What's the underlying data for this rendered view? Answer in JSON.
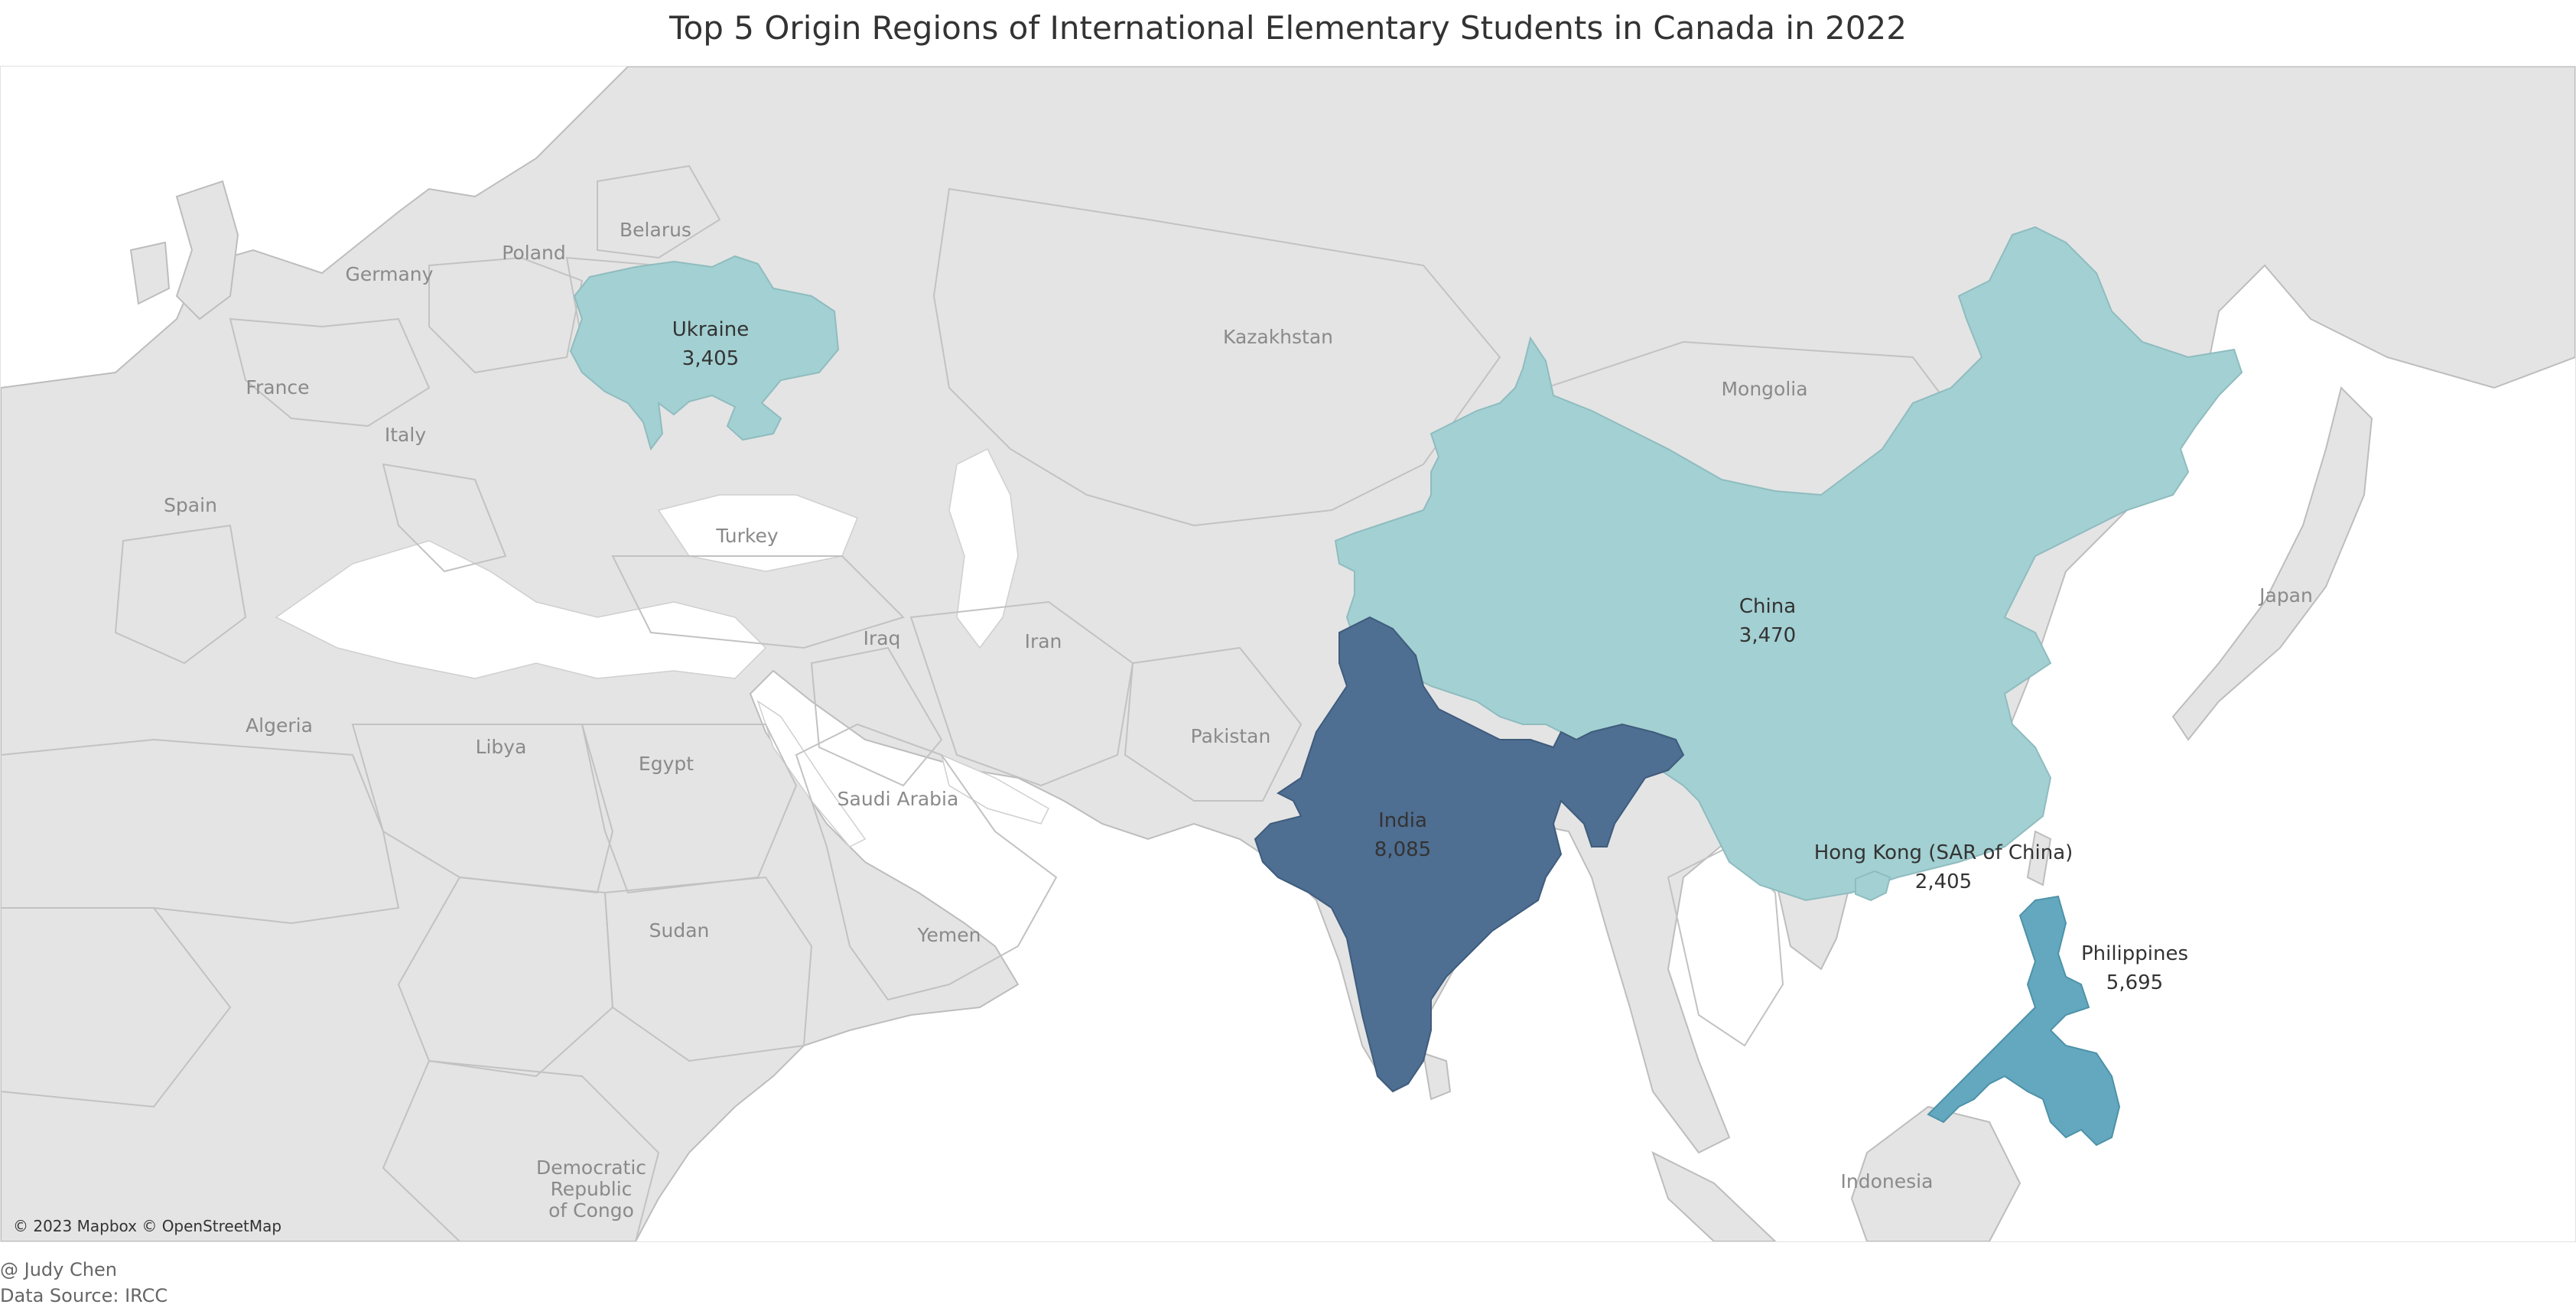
{
  "title": "Top 5 Origin Regions of International Elementary Students in Canada in 2022",
  "colors": {
    "land": "#e4e4e4",
    "water": "#ffffff",
    "india": "#4e6e92",
    "philippines": "#63a8bf",
    "ukraine": "#a3d0d2",
    "china": "#a3d0d2",
    "hong_kong": "#a3d0d2"
  },
  "highlighted": [
    {
      "key": "ukraine",
      "name": "Ukraine",
      "value": "3,405"
    },
    {
      "key": "china",
      "name": "China",
      "value": "3,470"
    },
    {
      "key": "india",
      "name": "India",
      "value": "8,085"
    },
    {
      "key": "hong_kong",
      "name": "Hong Kong (SAR of China)",
      "value": "2,405"
    },
    {
      "key": "philippines",
      "name": "Philippines",
      "value": "5,695"
    }
  ],
  "base_labels": {
    "belarus": "Belarus",
    "poland": "Poland",
    "germany": "Germany",
    "france": "France",
    "italy": "Italy",
    "spain": "Spain",
    "turkey": "Turkey",
    "kazakhstan": "Kazakhstan",
    "mongolia": "Mongolia",
    "japan": "Japan",
    "iraq": "Iraq",
    "iran": "Iran",
    "pakistan": "Pakistan",
    "algeria": "Algeria",
    "libya": "Libya",
    "egypt": "Egypt",
    "saudi_arabia": "Saudi Arabia",
    "sudan": "Sudan",
    "yemen": "Yemen",
    "indonesia": "Indonesia",
    "drc_line1": "Democratic",
    "drc_line2": "Republic",
    "drc_line3": "of Congo"
  },
  "attribution": "© 2023 Mapbox © OpenStreetMap",
  "footer": {
    "author": "@ Judy Chen",
    "source": "Data Source: IRCC"
  }
}
